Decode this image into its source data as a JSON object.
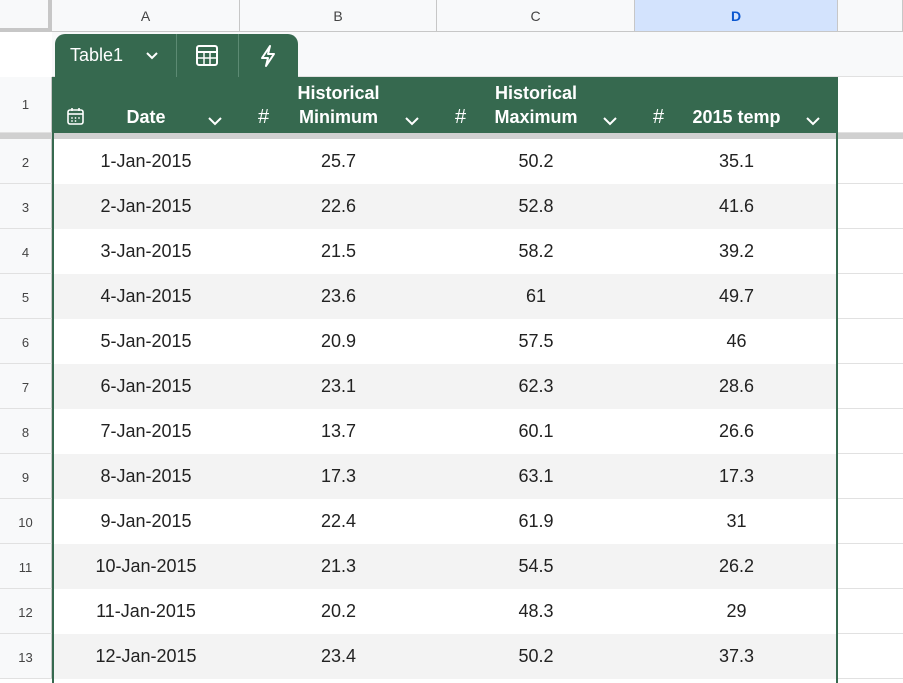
{
  "column_letters": [
    "A",
    "B",
    "C",
    "D"
  ],
  "row_numbers": [
    1,
    2,
    3,
    4,
    5,
    6,
    7,
    8,
    9,
    10,
    11,
    12,
    13
  ],
  "table": {
    "name": "Table1",
    "headers": [
      {
        "label_lines": [
          "Date"
        ]
      },
      {
        "symbol": "#",
        "label_lines": [
          "Historical",
          "Minimum"
        ]
      },
      {
        "symbol": "#",
        "label_lines": [
          "Historical",
          "Maximum"
        ]
      },
      {
        "symbol": "#",
        "label_lines": [
          "2015 temp"
        ]
      }
    ],
    "rows": [
      [
        "1-Jan-2015",
        25.7,
        50.2,
        35.1
      ],
      [
        "2-Jan-2015",
        22.6,
        52.8,
        41.6
      ],
      [
        "3-Jan-2015",
        21.5,
        58.2,
        39.2
      ],
      [
        "4-Jan-2015",
        23.6,
        61,
        49.7
      ],
      [
        "5-Jan-2015",
        20.9,
        57.5,
        46
      ],
      [
        "6-Jan-2015",
        23.1,
        62.3,
        28.6
      ],
      [
        "7-Jan-2015",
        13.7,
        60.1,
        26.6
      ],
      [
        "8-Jan-2015",
        17.3,
        63.1,
        17.3
      ],
      [
        "9-Jan-2015",
        22.4,
        61.9,
        31
      ],
      [
        "10-Jan-2015",
        21.3,
        54.5,
        26.2
      ],
      [
        "11-Jan-2015",
        20.2,
        48.3,
        29
      ],
      [
        "12-Jan-2015",
        23.4,
        50.2,
        37.3
      ]
    ]
  }
}
